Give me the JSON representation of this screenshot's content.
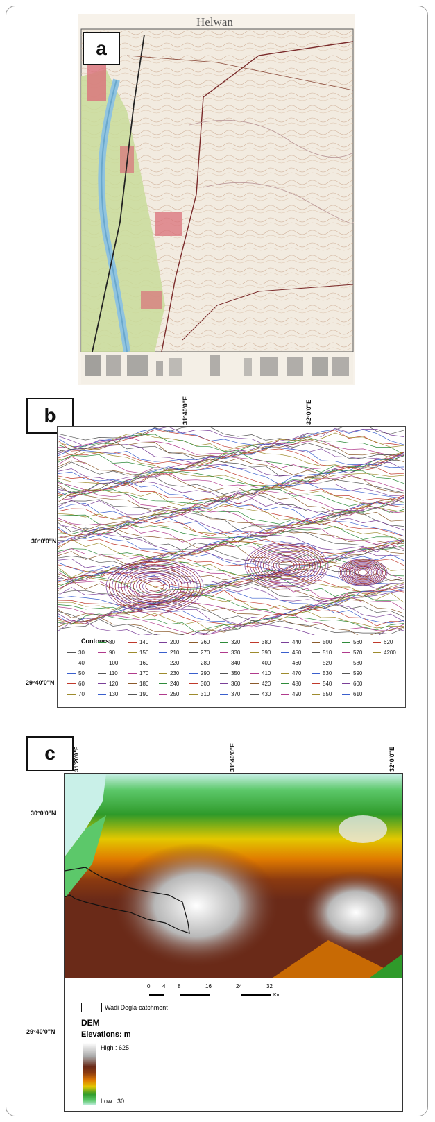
{
  "panel_a": {
    "label": "a",
    "map_title": "Helwan"
  },
  "panel_b": {
    "label": "b",
    "coords_top": [
      "31°40'0\"E",
      "32°0'0\"E"
    ],
    "coords_left": [
      "30°0'0\"N",
      "29°40'0\"N"
    ],
    "legend_title": "Contours",
    "contour_values": [
      "30",
      "40",
      "50",
      "60",
      "70",
      "80",
      "90",
      "100",
      "110",
      "120",
      "130",
      "140",
      "150",
      "160",
      "170",
      "180",
      "190",
      "200",
      "210",
      "220",
      "230",
      "240",
      "250",
      "260",
      "270",
      "280",
      "290",
      "300",
      "310",
      "320",
      "330",
      "340",
      "350",
      "360",
      "370",
      "380",
      "390",
      "400",
      "410",
      "420",
      "430",
      "440",
      "450",
      "460",
      "470",
      "480",
      "490",
      "500",
      "510",
      "520",
      "530",
      "540",
      "550",
      "560",
      "570",
      "580",
      "590",
      "600",
      "610",
      "620",
      "4200"
    ],
    "contour_colors": [
      "#555555",
      "#7a3f98",
      "#3a5fcd",
      "#c0392b",
      "#9e8b2d",
      "#2e8b3a",
      "#b03a8c",
      "#8b5a2b"
    ]
  },
  "panel_c": {
    "label": "c",
    "coords_top": [
      "31°20'0\"E",
      "31°40'0\"E",
      "32°0'0\"E"
    ],
    "coords_left": [
      "30°0'0\"N",
      "29°40'0\"N"
    ],
    "scale_ticks": [
      "0",
      "4",
      "8",
      "16",
      "24",
      "32"
    ],
    "scale_unit": "Km",
    "legend_catchment": "Wadi Degla-catchment",
    "legend_dem": "DEM",
    "legend_elev": "Elevations: m",
    "legend_high": "High : 625",
    "legend_low": "Low : 30"
  }
}
